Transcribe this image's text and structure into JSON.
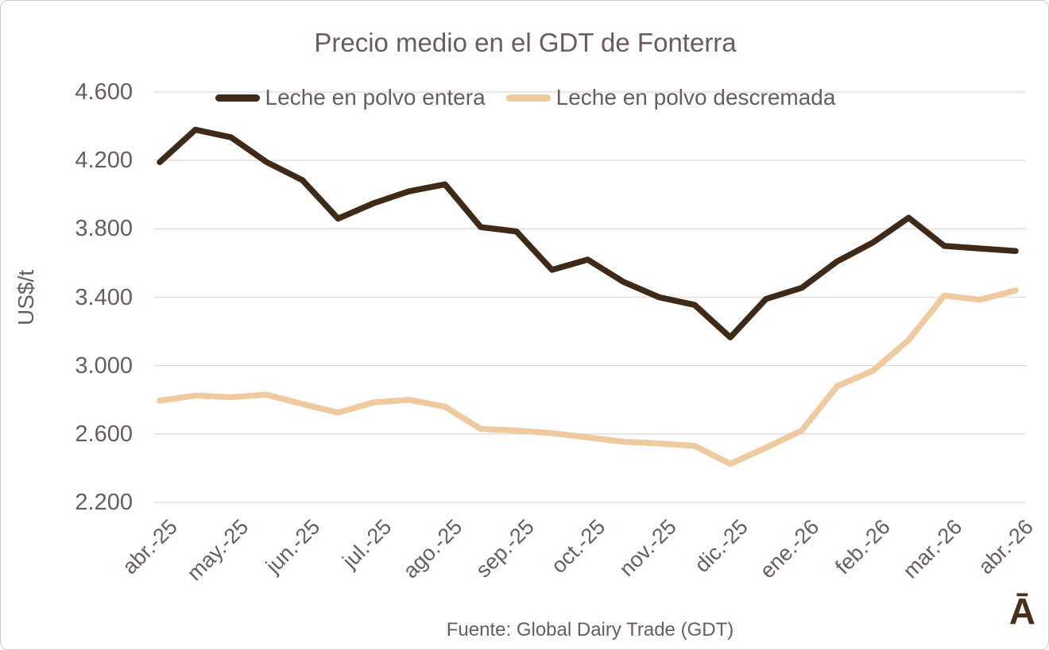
{
  "title": "Precio medio en el GDT de Fonterra",
  "source_note": "Fuente: Global Dairy Trade (GDT)",
  "brand_logo": "Ā",
  "colors": {
    "text": "#6a5c5c",
    "gridline": "#dcdcdc",
    "series_entera": "#3f2a17",
    "series_descremada": "#efca9f",
    "logo": "#4a2e1a",
    "background": "#ffffff",
    "border": "#cfc9c9"
  },
  "chart_data": {
    "type": "line",
    "title": "Precio medio en el GDT de Fonterra",
    "ylabel": "US$/t",
    "ylim": [
      2200,
      4600
    ],
    "y_tick_step": 400,
    "y_tick_labels": [
      "4.600",
      "4.200",
      "3.800",
      "3.400",
      "3.000",
      "2.600",
      "2.200"
    ],
    "x_tick_labels": [
      "abr.-25",
      "may.-25",
      "jun.-25",
      "jul.-25",
      "ago.-25",
      "sep.-25",
      "oct.-25",
      "nov.-25",
      "dic.-25",
      "ene.-26",
      "feb.-26",
      "mar.-26",
      "abr.-26"
    ],
    "points_per_tick": 2,
    "grid": true,
    "legend_position": "top",
    "series": [
      {
        "name": "Leche en polvo entera",
        "color": "#3f2a17",
        "values": [
          4190,
          4380,
          4335,
          4190,
          4085,
          3860,
          3950,
          4020,
          4060,
          3810,
          3785,
          3560,
          3620,
          3490,
          3400,
          3355,
          3165,
          3390,
          3455,
          3610,
          3720,
          3865,
          3700,
          3685,
          3670
        ]
      },
      {
        "name": "Leche en polvo descremada",
        "color": "#efca9f",
        "values": [
          2795,
          2825,
          2815,
          2830,
          2775,
          2725,
          2785,
          2800,
          2760,
          2630,
          2620,
          2605,
          2580,
          2555,
          2545,
          2530,
          2425,
          2520,
          2620,
          2880,
          2970,
          3150,
          3410,
          3385,
          3440
        ]
      }
    ]
  }
}
